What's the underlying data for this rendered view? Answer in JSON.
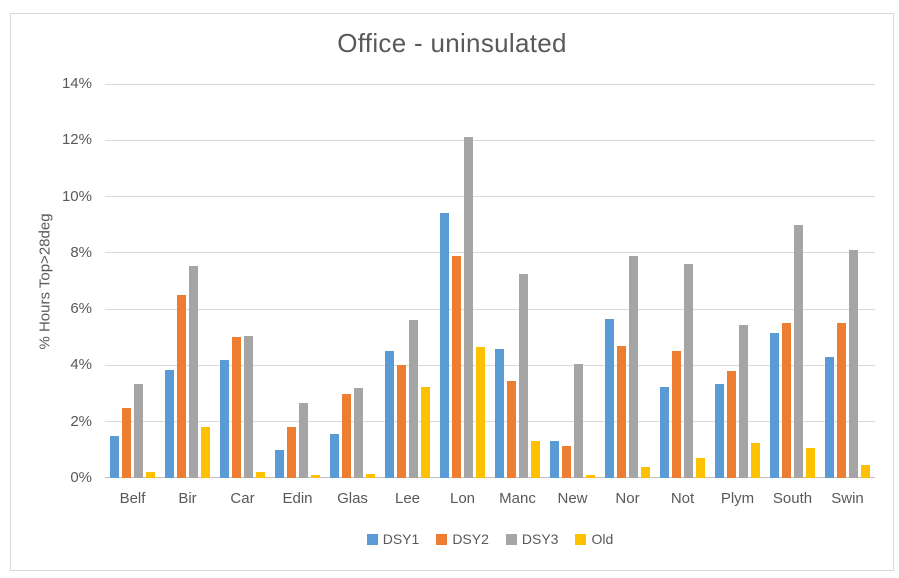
{
  "chart_data": {
    "type": "bar",
    "title": "Office - uninsulated",
    "ylabel": "% Hours Top>28deg",
    "xlabel": "",
    "ylim": [
      0,
      14
    ],
    "ytick_step": 2,
    "ytick_labels": [
      "0%",
      "2%",
      "4%",
      "6%",
      "8%",
      "10%",
      "12%",
      "14%"
    ],
    "grid": true,
    "legend_position": "bottom",
    "categories": [
      "Belf",
      "Bir",
      "Car",
      "Edin",
      "Glas",
      "Lee",
      "Lon",
      "Manc",
      "New",
      "Nor",
      "Not",
      "Plym",
      "South",
      "Swin"
    ],
    "series": [
      {
        "name": "DSY1",
        "color": "#5B9BD5",
        "values": [
          1.5,
          3.85,
          4.2,
          1.0,
          1.55,
          4.5,
          9.4,
          4.6,
          1.3,
          5.65,
          3.25,
          3.35,
          5.15,
          4.3
        ]
      },
      {
        "name": "DSY2",
        "color": "#ED7D31",
        "values": [
          2.5,
          6.5,
          5.0,
          1.8,
          3.0,
          4.0,
          7.9,
          3.45,
          1.15,
          4.7,
          4.5,
          3.8,
          5.5,
          5.5
        ]
      },
      {
        "name": "DSY3",
        "color": "#A5A5A5",
        "values": [
          3.35,
          7.55,
          5.05,
          2.65,
          3.2,
          5.6,
          12.1,
          7.25,
          4.05,
          7.9,
          7.6,
          5.45,
          9.0,
          8.1
        ]
      },
      {
        "name": "Old",
        "color": "#FFC000",
        "values": [
          0.2,
          1.8,
          0.2,
          0.1,
          0.15,
          3.25,
          4.65,
          1.3,
          0.1,
          0.4,
          0.7,
          1.25,
          1.05,
          0.45
        ]
      }
    ]
  },
  "style": {
    "text_color": "#595959",
    "gridline_color": "#D9D9D9",
    "axis_line_color": "#BFBFBF",
    "frame_border_color": "#D8D8D8",
    "background": "#FFFFFF"
  }
}
